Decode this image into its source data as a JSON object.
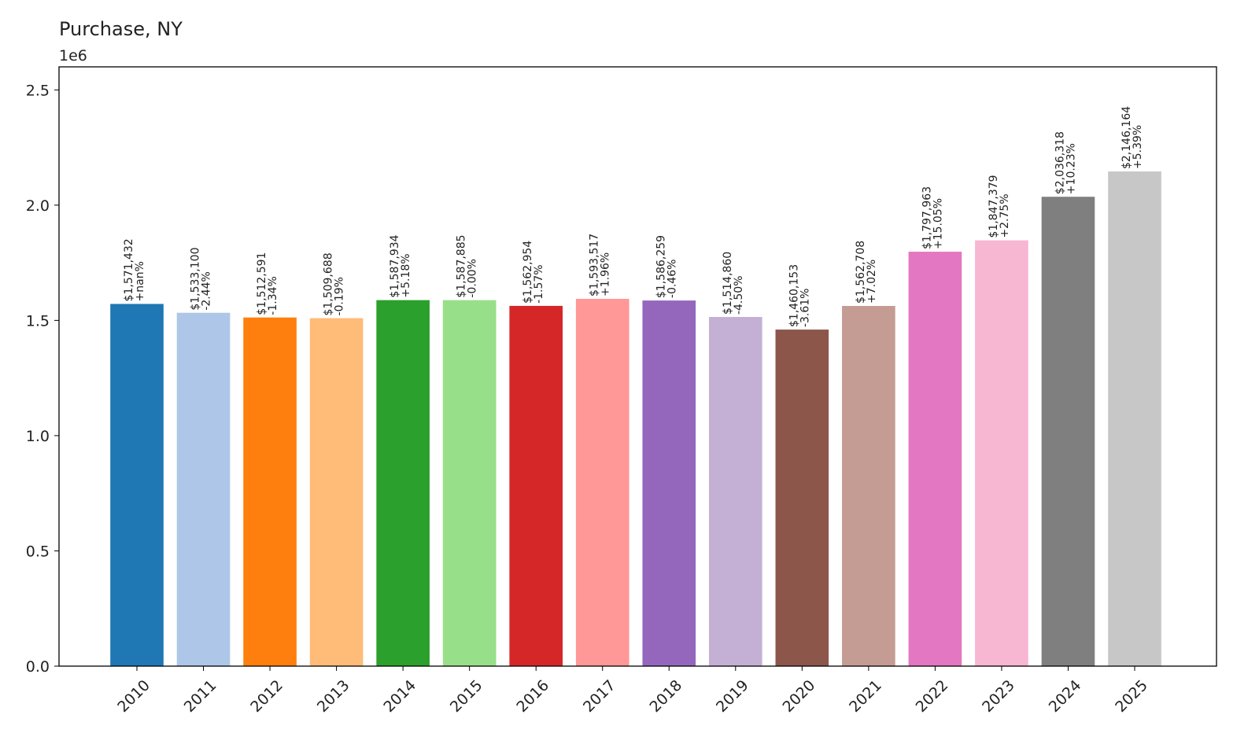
{
  "chart_data": {
    "type": "bar",
    "title": "Purchase, NY",
    "axis_offset_label": "1e6",
    "xlabel": "",
    "ylabel": "",
    "ylim": [
      0,
      2.6
    ],
    "y_multiplier": 1000000,
    "yticks": [
      0.0,
      0.5,
      1.0,
      1.5,
      2.0,
      2.5
    ],
    "ytick_labels": [
      "0.0",
      "0.5",
      "1.0",
      "1.5",
      "2.0",
      "2.5"
    ],
    "grid": false,
    "legend": "none",
    "categories": [
      "2010",
      "2011",
      "2012",
      "2013",
      "2014",
      "2015",
      "2016",
      "2017",
      "2018",
      "2019",
      "2020",
      "2021",
      "2022",
      "2023",
      "2024",
      "2025"
    ],
    "values": [
      1571432,
      1533100,
      1512591,
      1509688,
      1587934,
      1587885,
      1562954,
      1593517,
      1586259,
      1514860,
      1460153,
      1562708,
      1797963,
      1847379,
      2036318,
      2146164
    ],
    "value_labels": [
      "$1,571,432",
      "$1,533,100",
      "$1,512,591",
      "$1,509,688",
      "$1,587,934",
      "$1,587,885",
      "$1,562,954",
      "$1,593,517",
      "$1,586,259",
      "$1,514,860",
      "$1,460,153",
      "$1,562,708",
      "$1,797,963",
      "$1,847,379",
      "$2,036,318",
      "$2,146,164"
    ],
    "change_labels": [
      "+nan%",
      "-2.44%",
      "-1.34%",
      "-0.19%",
      "+5.18%",
      "-0.00%",
      "-1.57%",
      "+1.96%",
      "-0.46%",
      "-4.50%",
      "-3.61%",
      "+7.02%",
      "+15.05%",
      "+2.75%",
      "+10.23%",
      "+5.39%"
    ],
    "colors": [
      "#1f77b4",
      "#aec7e8",
      "#ff7f0e",
      "#ffbb78",
      "#2ca02c",
      "#98df8a",
      "#d62728",
      "#ff9896",
      "#9467bd",
      "#c5b0d5",
      "#8c564b",
      "#c49c94",
      "#e377c2",
      "#f7b6d2",
      "#7f7f7f",
      "#c7c7c7"
    ]
  }
}
